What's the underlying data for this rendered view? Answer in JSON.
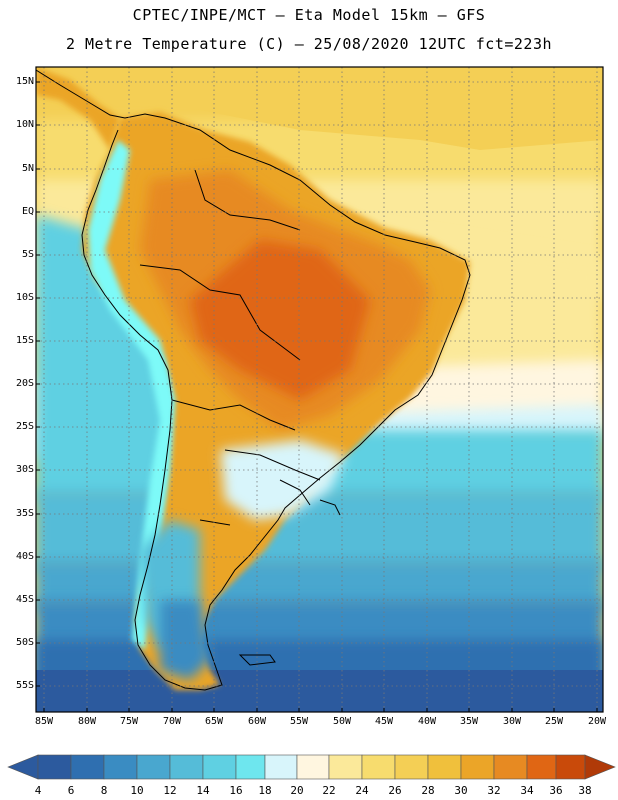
{
  "header": {
    "line1": "CPTEC/INPE/MCT –  Eta Model 15km – GFS",
    "line2": "2 Metre Temperature (C) – 25/08/2020 12UTC fct=223h"
  },
  "map": {
    "lat_ticks": [
      "15N",
      "10N",
      "5N",
      "EQ",
      "5S",
      "10S",
      "15S",
      "20S",
      "25S",
      "30S",
      "35S",
      "40S",
      "45S",
      "50S",
      "55S"
    ],
    "lon_ticks": [
      "85W",
      "80W",
      "75W",
      "70W",
      "65W",
      "60W",
      "55W",
      "50W",
      "45W",
      "40W",
      "35W",
      "30W",
      "25W",
      "20W"
    ],
    "lon_range": [
      -85,
      -20
    ],
    "lat_range": [
      -58,
      16
    ]
  },
  "colorbar": {
    "ticks": [
      "4",
      "6",
      "8",
      "10",
      "12",
      "14",
      "16",
      "18",
      "20",
      "22",
      "24",
      "26",
      "28",
      "30",
      "32",
      "34",
      "36",
      "38"
    ],
    "colors": [
      "#2c5a9e",
      "#2f6fb0",
      "#3a8cc2",
      "#49a7cf",
      "#55bcd8",
      "#5fd0e2",
      "#6ee6ee",
      "#7dfaf8",
      "#d8f5fb",
      "#fff6e0",
      "#fbe99a",
      "#f7dc6e",
      "#f4cf55",
      "#f0c03c",
      "#eba528",
      "#e78a22",
      "#e06614",
      "#c94a0a",
      "#b03a08",
      "#963208"
    ]
  }
}
